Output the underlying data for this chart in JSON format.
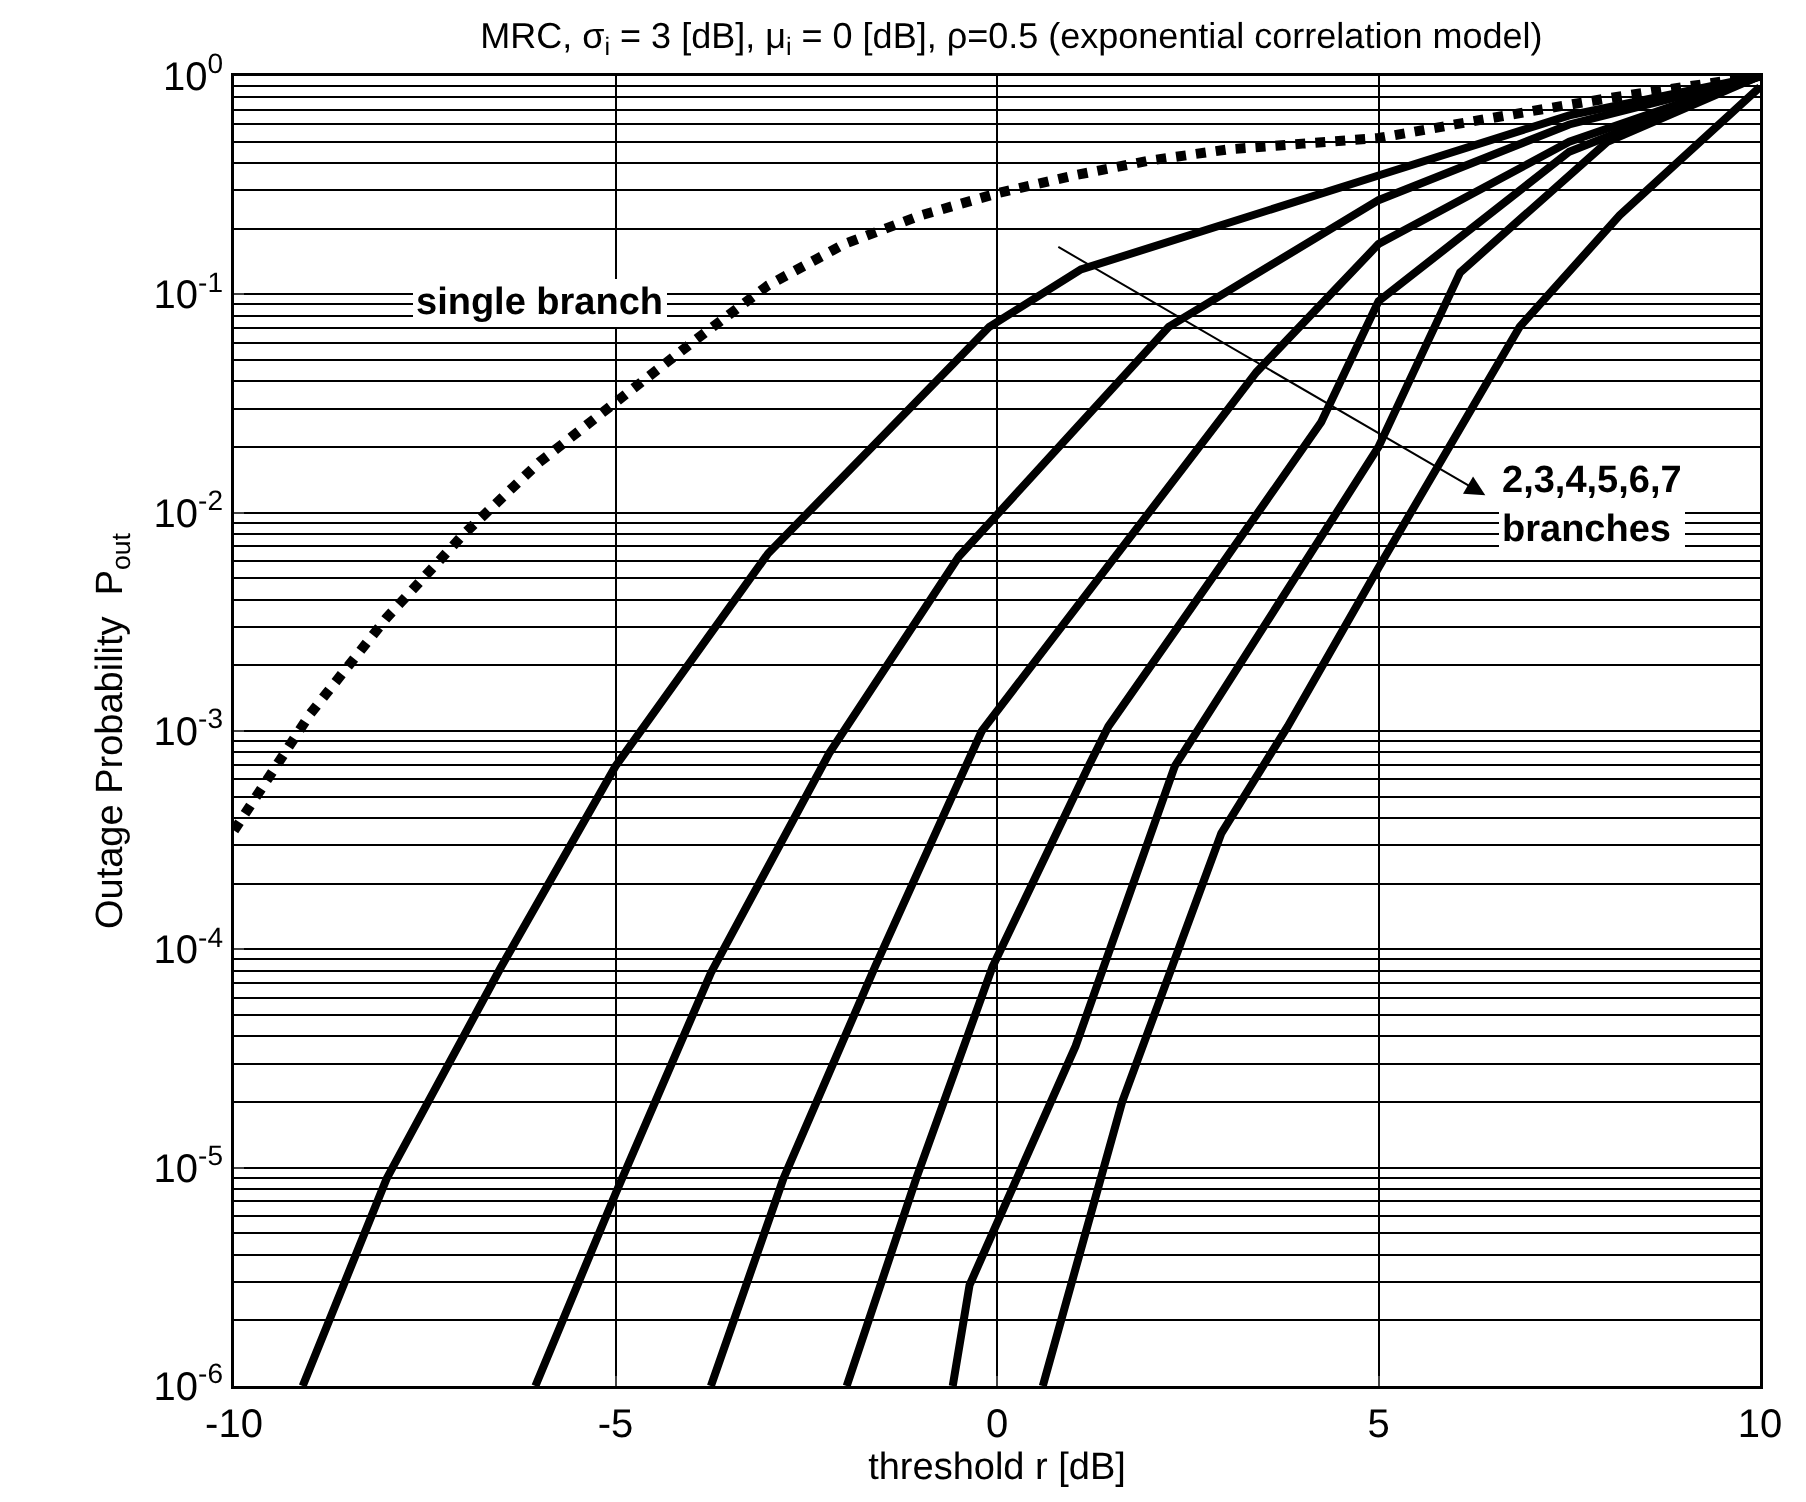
{
  "chart_data": {
    "type": "line",
    "title": "MRC, σ$_{i}$ = 3 [dB], μ$_{i}$ = 0 [dB], ρ=0.5 (exponential correlation model)",
    "xlabel": "threshold r [dB]",
    "ylabel": "Outage Probability  P$_{out}$",
    "xlim": [
      -10,
      10
    ],
    "xticks": [
      -10,
      -5,
      0,
      5,
      10
    ],
    "ylim": [
      1e-06,
      1
    ],
    "yticks": [
      {
        "value": 1,
        "label": "10$^{0}$"
      },
      {
        "value": 0.1,
        "label": "10$^{-1}$"
      },
      {
        "value": 0.01,
        "label": "10$^{-2}$"
      },
      {
        "value": 0.001,
        "label": "10$^{-3}$"
      },
      {
        "value": 0.0001,
        "label": "10$^{-4}$"
      },
      {
        "value": 1e-05,
        "label": "10$^{-5}$"
      },
      {
        "value": 1e-06,
        "label": "10$^{-6}$"
      }
    ],
    "log": "y",
    "grid": true,
    "marker": "none",
    "annotations": [
      "single branch",
      "2,3,4,5,6,7\nbranches"
    ],
    "series": [
      {
        "color": "#000000",
        "line_style": "dotted",
        "x": [
          -10,
          -9,
          -8,
          -7,
          -6,
          -5,
          -4,
          -3,
          -2,
          -1,
          0,
          1,
          2,
          3,
          4,
          5,
          6,
          7,
          8,
          9,
          10
        ],
        "values": [
          0.00035,
          0.0012,
          0.0033,
          0.0079,
          0.017,
          0.032,
          0.06,
          0.11,
          0.17,
          0.23,
          0.29,
          0.35,
          0.41,
          0.46,
          0.49,
          0.52,
          0.6,
          0.69,
          0.79,
          0.89,
          1
        ]
      },
      {
        "color": "#000000",
        "line_style": "solid",
        "x": [
          -9.1,
          -8,
          -6.5,
          -5,
          -3,
          -0.1,
          1.1,
          5,
          7.5,
          10
        ],
        "values": [
          1e-06,
          8.9e-06,
          8.3e-05,
          0.00069,
          0.0065,
          0.071,
          0.13,
          0.35,
          0.66,
          1
        ]
      },
      {
        "color": "#000000",
        "line_style": "solid",
        "x": [
          -6.05,
          -5,
          -3.75,
          -2.2,
          -0.5,
          2.25,
          5,
          7.5,
          10
        ],
        "values": [
          1e-06,
          7.6e-06,
          7.8e-05,
          0.00079,
          0.0063,
          0.071,
          0.27,
          0.6,
          1
        ]
      },
      {
        "color": "#000000",
        "line_style": "solid",
        "x": [
          -3.75,
          -2.8,
          -1.6,
          -0.2,
          3.4,
          5,
          7.5,
          10
        ],
        "values": [
          1e-06,
          8.9e-06,
          8.3e-05,
          0.001,
          0.044,
          0.17,
          0.5,
          1
        ]
      },
      {
        "color": "#000000",
        "line_style": "solid",
        "x": [
          -1.97,
          -1.06,
          -0.06,
          1.2,
          1.46,
          4.25,
          5,
          7.5,
          10
        ],
        "values": [
          1e-06,
          8.9e-06,
          8.3e-05,
          0.00069,
          0.00105,
          0.026,
          0.093,
          0.45,
          1
        ]
      },
      {
        "color": "#000000",
        "line_style": "solid",
        "x": [
          -0.58,
          -0.36,
          1.03,
          2.33,
          5,
          6.07,
          8,
          10
        ],
        "values": [
          1e-06,
          2.9e-06,
          3.6e-05,
          0.00069,
          0.02,
          0.126,
          0.5,
          1
        ]
      },
      {
        "color": "#000000",
        "line_style": "solid",
        "x": [
          0.6,
          1.64,
          2.94,
          3.81,
          5,
          6.85,
          8.16,
          10
        ],
        "values": [
          1e-06,
          2e-05,
          0.00034,
          0.00105,
          0.0056,
          0.071,
          0.23,
          0.89
        ]
      }
    ]
  }
}
